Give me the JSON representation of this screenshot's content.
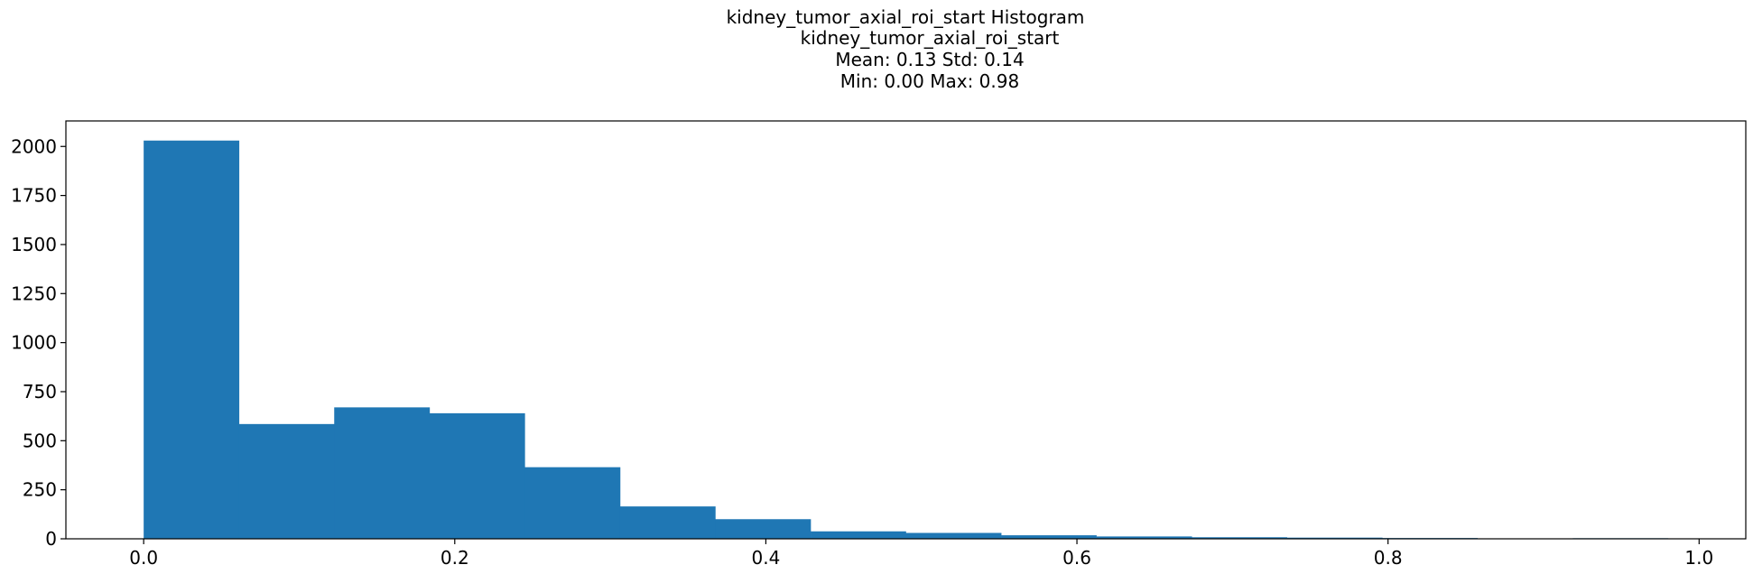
{
  "chart_data": {
    "type": "bar",
    "title_lines": [
      "kidney_tumor_axial_roi_start Histogram",
      "kidney_tumor_axial_roi_start",
      "Mean: 0.13 Std: 0.14",
      "Min: 0.00 Max: 0.98"
    ],
    "xlabel": "",
    "ylabel": "",
    "xlim": [
      -0.05,
      1.03
    ],
    "ylim": [
      0,
      2130
    ],
    "x_ticks": [
      {
        "value": 0.0,
        "label": "0.0"
      },
      {
        "value": 0.2,
        "label": "0.2"
      },
      {
        "value": 0.4,
        "label": "0.4"
      },
      {
        "value": 0.6,
        "label": "0.6"
      },
      {
        "value": 0.8,
        "label": "0.8"
      },
      {
        "value": 1.0,
        "label": "1.0"
      }
    ],
    "y_ticks": [
      {
        "value": 0,
        "label": "0"
      },
      {
        "value": 250,
        "label": "250"
      },
      {
        "value": 500,
        "label": "500"
      },
      {
        "value": 750,
        "label": "750"
      },
      {
        "value": 1000,
        "label": "1000"
      },
      {
        "value": 1250,
        "label": "1250"
      },
      {
        "value": 1500,
        "label": "1500"
      },
      {
        "value": 1750,
        "label": "1750"
      },
      {
        "value": 2000,
        "label": "2000"
      }
    ],
    "bins": [
      {
        "start": 0.0,
        "end": 0.0613,
        "count": 2030
      },
      {
        "start": 0.0613,
        "end": 0.1225,
        "count": 585
      },
      {
        "start": 0.1225,
        "end": 0.1838,
        "count": 670
      },
      {
        "start": 0.1838,
        "end": 0.245,
        "count": 640
      },
      {
        "start": 0.245,
        "end": 0.3063,
        "count": 365
      },
      {
        "start": 0.3063,
        "end": 0.3675,
        "count": 165
      },
      {
        "start": 0.3675,
        "end": 0.4288,
        "count": 100
      },
      {
        "start": 0.4288,
        "end": 0.49,
        "count": 38
      },
      {
        "start": 0.49,
        "end": 0.5513,
        "count": 30
      },
      {
        "start": 0.5513,
        "end": 0.6125,
        "count": 18
      },
      {
        "start": 0.6125,
        "end": 0.6738,
        "count": 12
      },
      {
        "start": 0.6738,
        "end": 0.735,
        "count": 8
      },
      {
        "start": 0.735,
        "end": 0.7963,
        "count": 6
      },
      {
        "start": 0.7963,
        "end": 0.8575,
        "count": 4
      },
      {
        "start": 0.8575,
        "end": 0.9188,
        "count": 2
      },
      {
        "start": 0.9188,
        "end": 0.98,
        "count": 3
      }
    ],
    "bar_color": "#1f77b4",
    "grid": false,
    "legend": "none"
  }
}
